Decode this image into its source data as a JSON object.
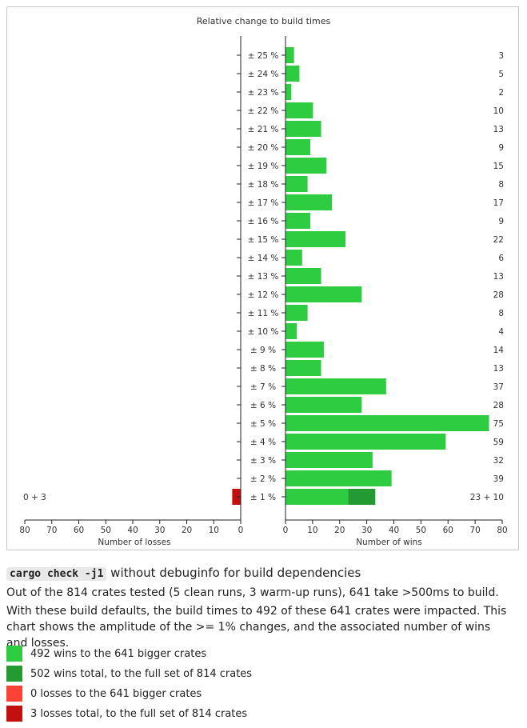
{
  "chart_data": {
    "type": "bar",
    "orientation": "horizontal-butterfly",
    "title": "Relative change to build times",
    "categories": [
      "± 25 %",
      "± 24 %",
      "± 23 %",
      "± 22 %",
      "± 21 %",
      "± 20 %",
      "± 19 %",
      "± 18 %",
      "± 17 %",
      "± 16 %",
      "± 15 %",
      "± 14 %",
      "± 13 %",
      "± 12 %",
      "± 11 %",
      "± 10 %",
      "± 9 %",
      "± 8 %",
      "± 7 %",
      "± 6 %",
      "± 5 %",
      "± 4 %",
      "± 3 %",
      "± 2 %",
      "± 1 %"
    ],
    "wins_big": [
      3,
      5,
      2,
      10,
      13,
      9,
      15,
      8,
      17,
      9,
      22,
      6,
      13,
      28,
      8,
      4,
      14,
      13,
      37,
      28,
      75,
      59,
      32,
      39,
      23
    ],
    "wins_extra": [
      0,
      0,
      0,
      0,
      0,
      0,
      0,
      0,
      0,
      0,
      0,
      0,
      0,
      0,
      0,
      0,
      0,
      0,
      0,
      0,
      0,
      0,
      0,
      0,
      10
    ],
    "wins_labels": [
      "3",
      "5",
      "2",
      "10",
      "13",
      "9",
      "15",
      "8",
      "17",
      "9",
      "22",
      "6",
      "13",
      "28",
      "8",
      "4",
      "14",
      "13",
      "37",
      "28",
      "75",
      "59",
      "32",
      "39",
      "23 + 10"
    ],
    "losses_big": [
      0,
      0,
      0,
      0,
      0,
      0,
      0,
      0,
      0,
      0,
      0,
      0,
      0,
      0,
      0,
      0,
      0,
      0,
      0,
      0,
      0,
      0,
      0,
      0,
      0
    ],
    "losses_extra": [
      0,
      0,
      0,
      0,
      0,
      0,
      0,
      0,
      0,
      0,
      0,
      0,
      0,
      0,
      0,
      0,
      0,
      0,
      0,
      0,
      0,
      0,
      0,
      0,
      3
    ],
    "losses_labels": [
      "",
      "",
      "",
      "",
      "",
      "",
      "",
      "",
      "",
      "",
      "",
      "",
      "",
      "",
      "",
      "",
      "",
      "",
      "",
      "",
      "",
      "",
      "",
      "",
      "0 + 3"
    ],
    "xlabel_losses": "Number of losses",
    "xlabel_wins": "Number of wins",
    "xlim": [
      0,
      80
    ],
    "ticks": [
      0,
      10,
      20,
      30,
      40,
      50,
      60,
      70,
      80
    ],
    "colors": {
      "win_big": "#2ecc40",
      "win_extra": "#239a32",
      "loss_big": "#ff4136",
      "loss_extra": "#c40f0f"
    }
  },
  "caption": {
    "command": "cargo check -j1",
    "heading_rest": " without debuginfo for build dependencies",
    "line1": "Out of the 814 crates tested (5 clean runs, 3 warm-up runs), 641 take >500ms to build.",
    "line2": "With these build defaults, the build times to 492 of these 641 crates were impacted. This chart shows the amplitude of the >= 1% changes, and the associated number of wins and losses."
  },
  "legend": [
    {
      "label": "492 wins to the 641 bigger crates",
      "color": "#2ecc40"
    },
    {
      "label": "502 wins total, to the full set of 814 crates",
      "color": "#239a32"
    },
    {
      "label": "0 losses to the 641 bigger crates",
      "color": "#ff4136"
    },
    {
      "label": "3 losses total, to the full set of 814 crates",
      "color": "#c40f0f"
    }
  ]
}
